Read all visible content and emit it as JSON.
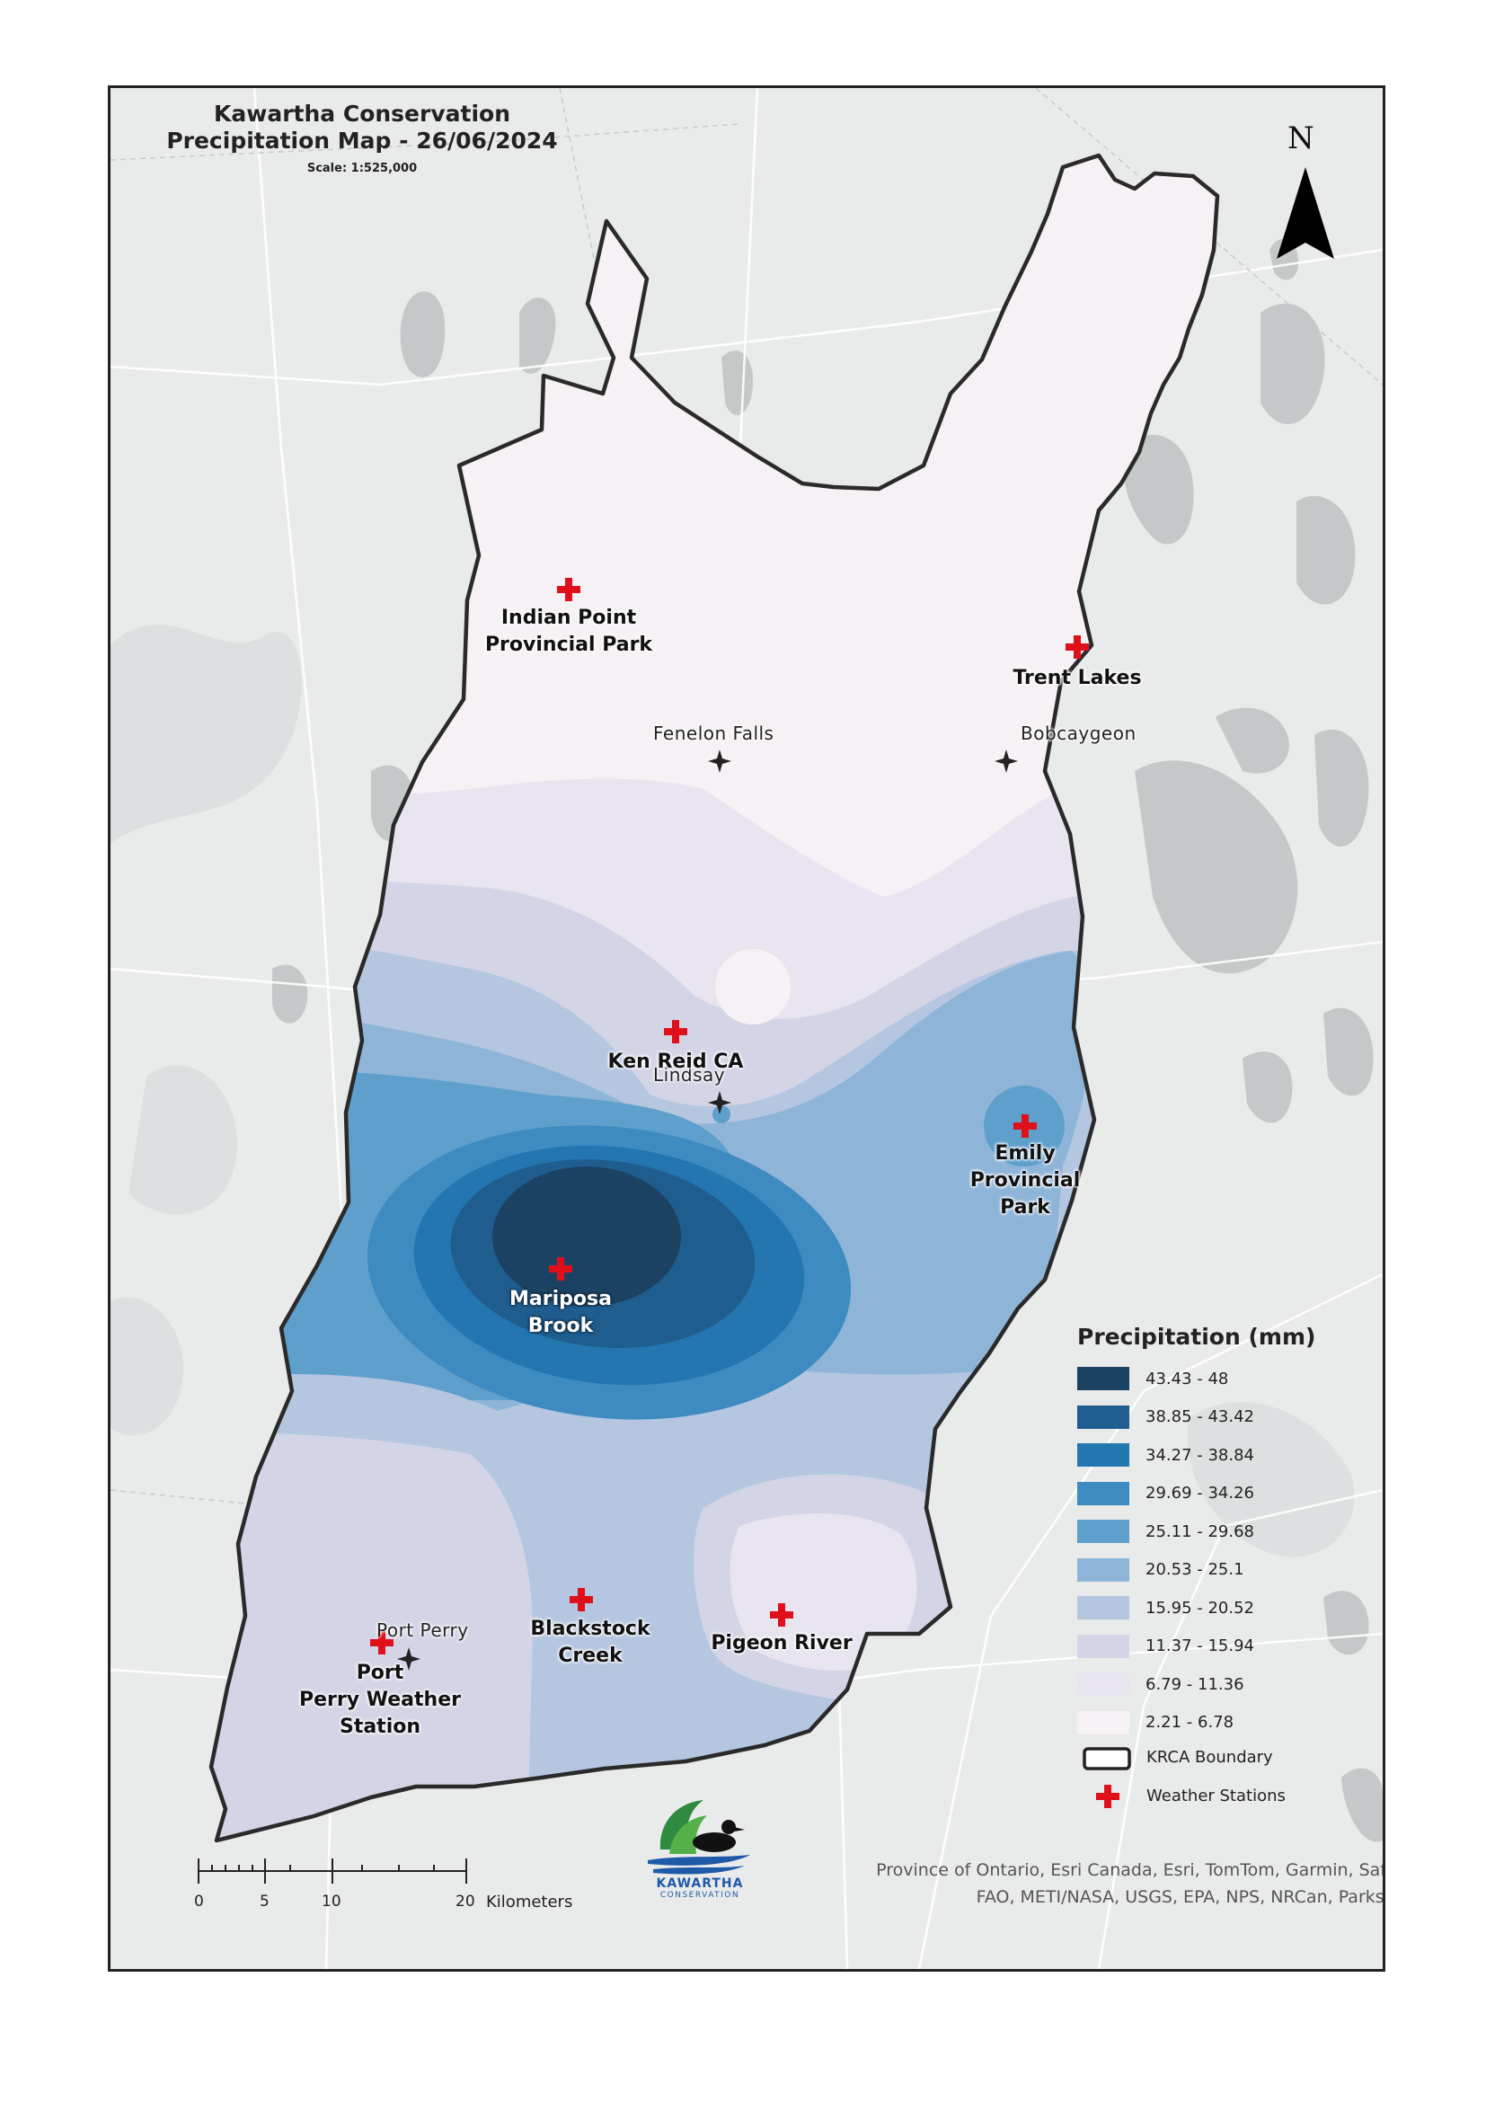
{
  "map": {
    "title_line1": "Kawartha Conservation",
    "title_line2": "Precipitation Map - 26/06/2024",
    "scale": "Scale: 1:525,000",
    "north_label": "N"
  },
  "stations": [
    {
      "line1": "Indian Point",
      "line2": "Provincial Park",
      "line3": ""
    },
    {
      "line1": "Trent Lakes",
      "line2": "",
      "line3": ""
    },
    {
      "line1": "Ken Reid CA",
      "line2": "",
      "line3": ""
    },
    {
      "line1": "Emily",
      "line2": "Provincial",
      "line3": "Park"
    },
    {
      "line1": "Mariposa",
      "line2": "Brook",
      "line3": ""
    },
    {
      "line1": "Blackstock",
      "line2": "Creek",
      "line3": ""
    },
    {
      "line1": "Pigeon River",
      "line2": "",
      "line3": ""
    },
    {
      "line1": "Port",
      "line2": "Perry Weather",
      "line3": "Station"
    }
  ],
  "towns": [
    "Fenelon Falls",
    "Bobcaygeon",
    "Lindsay",
    "Port Perry"
  ],
  "legend": {
    "title": "Precipitation (mm)",
    "classes": [
      {
        "label": "43.43 - 48",
        "color": "#1c4263"
      },
      {
        "label": "38.85 - 43.42",
        "color": "#1f5d8e"
      },
      {
        "label": "34.27 - 38.84",
        "color": "#2476b0"
      },
      {
        "label": "29.69 - 34.26",
        "color": "#3d8bc0"
      },
      {
        "label": "25.11 - 29.68",
        "color": "#5e9fcc"
      },
      {
        "label": "20.53 - 25.1",
        "color": "#8eb5d8"
      },
      {
        "label": "15.95 - 20.52",
        "color": "#b4c6e0"
      },
      {
        "label": "11.37 - 15.94",
        "color": "#d3d5e6"
      },
      {
        "label": "6.79 - 11.36",
        "color": "#e8e5f0"
      },
      {
        "label": "2.21 - 6.78",
        "color": "#f6f1f5"
      }
    ],
    "boundary_label": "KRCA Boundary",
    "stations_label": "Weather Stations"
  },
  "scalebar": {
    "ticks": [
      "0",
      "5",
      "10",
      "20"
    ],
    "unit": "Kilometers"
  },
  "logo": {
    "line1": "KAWARTHA",
    "line2": "CONSERVATION"
  },
  "attribution": {
    "line1": "Province of Ontario, Esri Canada, Esri, TomTom, Garmin, SafeGraph,",
    "line2": "FAO, METI/NASA, USGS, EPA, NPS, NRCan, Parks Canada"
  }
}
